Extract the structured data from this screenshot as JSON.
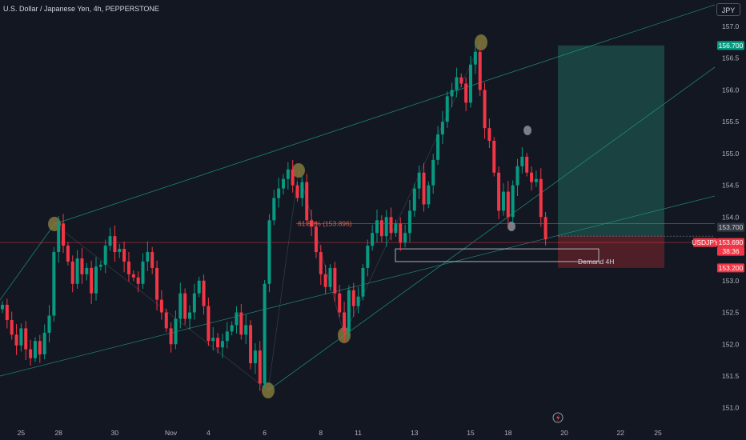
{
  "header": {
    "title": "U.S. Dollar / Japanese Yen, 4h, PEPPERSTONE",
    "currency_button": "JPY"
  },
  "colors": {
    "background": "#131722",
    "up": "#089981",
    "down": "#f23645",
    "channel": "#1e9c8c",
    "marker": "#8a7e3e",
    "target_zone": "#1b4a47",
    "stop_zone": "#5a2128"
  },
  "chart_data": {
    "type": "candlestick",
    "symbol": "USDJPY",
    "timeframe": "4h",
    "ylim": [
      150.75,
      157.3
    ],
    "y_ticks": [
      151.0,
      151.5,
      152.0,
      152.5,
      153.0,
      153.5,
      154.0,
      154.5,
      155.0,
      155.5,
      156.0,
      156.5,
      157.0
    ],
    "x_ticks": [
      {
        "label": "25",
        "bar": 4
      },
      {
        "label": "28",
        "bar": 12
      },
      {
        "label": "30",
        "bar": 24
      },
      {
        "label": "Nov",
        "bar": 36
      },
      {
        "label": "4",
        "bar": 44
      },
      {
        "label": "6",
        "bar": 56
      },
      {
        "label": "8",
        "bar": 68
      },
      {
        "label": "11",
        "bar": 76
      },
      {
        "label": "13",
        "bar": 88
      },
      {
        "label": "15",
        "bar": 100
      },
      {
        "label": "18",
        "bar": 108
      },
      {
        "label": "20",
        "bar": 120
      },
      {
        "label": "22",
        "bar": 132
      },
      {
        "label": "25",
        "bar": 140
      }
    ],
    "closes": [
      152.62,
      152.38,
      152.15,
      151.98,
      152.25,
      151.92,
      151.78,
      152.05,
      151.84,
      152.18,
      152.45,
      153.45,
      153.9,
      153.55,
      153.3,
      152.95,
      153.35,
      153.1,
      153.2,
      152.8,
      153.22,
      153.25,
      153.55,
      153.7,
      153.45,
      153.5,
      153.3,
      153.1,
      153.05,
      152.95,
      153.3,
      153.45,
      153.2,
      152.7,
      152.5,
      152.25,
      152.0,
      152.4,
      152.8,
      152.4,
      152.5,
      152.8,
      153.0,
      152.6,
      152.05,
      152.1,
      151.95,
      152.05,
      152.2,
      152.3,
      152.5,
      152.15,
      152.3,
      151.7,
      151.9,
      151.38,
      152.95,
      153.95,
      154.3,
      154.45,
      154.6,
      154.75,
      154.5,
      154.3,
      154.55,
      153.95,
      153.85,
      153.45,
      153.1,
      152.9,
      153.2,
      152.8,
      152.5,
      152.2,
      152.85,
      152.6,
      152.75,
      153.2,
      153.55,
      153.75,
      153.95,
      153.7,
      154.0,
      153.75,
      153.9,
      153.6,
      153.75,
      154.1,
      154.45,
      154.7,
      154.2,
      154.5,
      154.9,
      155.3,
      155.5,
      155.9,
      156.0,
      156.2,
      156.1,
      155.8,
      156.4,
      156.6,
      156.0,
      155.4,
      155.2,
      154.7,
      154.1,
      154.4,
      154.0,
      154.5,
      154.8,
      154.95,
      154.7,
      154.55,
      154.6,
      154.0,
      153.65
    ]
  },
  "annotations": {
    "fib_label": "61.80% (153.896)",
    "demand_label": "Demand 4H"
  },
  "price_tags": {
    "target": "156.700",
    "current": "153.700",
    "symbol": "USDJPY",
    "last_price": "153.690",
    "countdown": "38:36",
    "stop": "153.200"
  },
  "bottom_icon": "lightning-icon"
}
